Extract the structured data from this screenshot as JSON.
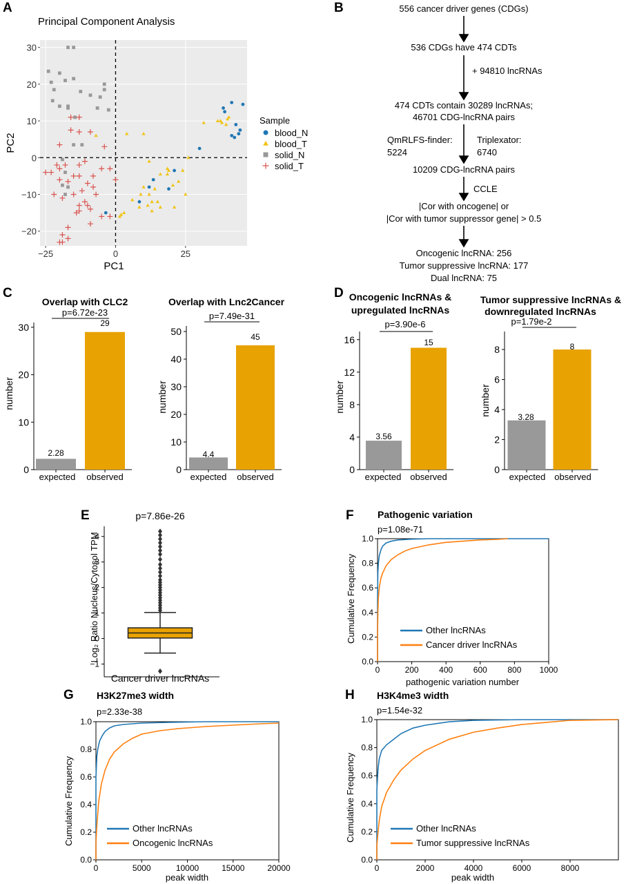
{
  "panels": {
    "A": "A",
    "B": "B",
    "C": "C",
    "D": "D",
    "E": "E",
    "F": "F",
    "G": "G",
    "H": "H"
  },
  "colors": {
    "blue": "#1f77b4",
    "gold": "#e8a202",
    "gray": "#999999",
    "red": "#d9534f",
    "yellow": "#f0c419",
    "panel_bg": "#ebebeb",
    "orange": "#ff7f0e"
  },
  "chart_data": [
    {
      "id": "A",
      "type": "scatter",
      "title": "Principal Component Analysis",
      "xlabel": "PC1",
      "ylabel": "PC2",
      "xlim": [
        -27,
        47
      ],
      "ylim": [
        -24,
        32
      ],
      "xticks": [
        -25,
        0,
        25
      ],
      "yticks": [
        -20,
        -10,
        0,
        10,
        20,
        30
      ],
      "xtick_labels": [
        "−25",
        "0",
        "25"
      ],
      "ytick_labels": [
        "−20",
        "−10",
        "0",
        "10",
        "20",
        "30"
      ],
      "legend_title": "Sample",
      "series": [
        {
          "name": "blood_N",
          "marker": "circle",
          "color": "#1f77b4",
          "points": [
            [
              38.5,
              13.5
            ],
            [
              41.5,
              15
            ],
            [
              45.5,
              14.5
            ],
            [
              39,
              12.5
            ],
            [
              43,
              9
            ],
            [
              44.5,
              7.5
            ],
            [
              44,
              6.5
            ],
            [
              42.5,
              5.5
            ],
            [
              41.5,
              6
            ],
            [
              30,
              2.5
            ],
            [
              21,
              -3.5
            ],
            [
              13.5,
              -6
            ],
            [
              12,
              -8
            ],
            [
              19,
              -8.5
            ],
            [
              8.5,
              -12
            ],
            [
              -3.5,
              -15
            ]
          ]
        },
        {
          "name": "blood_T",
          "marker": "triangle",
          "color": "#f0c419",
          "points": [
            [
              31.5,
              9.5
            ],
            [
              36.5,
              10
            ],
            [
              37.5,
              10
            ],
            [
              40.5,
              11
            ],
            [
              40,
              10.5
            ],
            [
              39.5,
              9
            ],
            [
              38,
              9.5
            ],
            [
              10,
              6.5
            ],
            [
              4,
              6.5
            ],
            [
              -7,
              6
            ],
            [
              12,
              -1
            ],
            [
              16,
              -4.5
            ],
            [
              18.5,
              -4.5
            ],
            [
              19,
              -3.5
            ],
            [
              18.5,
              -3
            ],
            [
              24,
              -3.5
            ],
            [
              26,
              0
            ],
            [
              20.5,
              -7.5
            ],
            [
              22.5,
              -6.5
            ],
            [
              14,
              -8.5
            ],
            [
              10,
              -8
            ],
            [
              12,
              -10
            ],
            [
              9,
              -10
            ],
            [
              6,
              -11.5
            ],
            [
              13,
              -12
            ],
            [
              16,
              -13.5
            ],
            [
              13,
              -14.5
            ],
            [
              8.5,
              -13.5
            ],
            [
              3,
              -15
            ],
            [
              1.5,
              -16
            ],
            [
              2,
              -15.5
            ],
            [
              21,
              -13.5
            ],
            [
              25,
              -10
            ],
            [
              15,
              -12
            ],
            [
              11.5,
              -13
            ]
          ]
        },
        {
          "name": "solid_N",
          "marker": "square",
          "color": "#999999",
          "points": [
            [
              -17,
              30
            ],
            [
              -15,
              30
            ],
            [
              -24,
              23.5
            ],
            [
              -20,
              23
            ],
            [
              -15,
              21.5
            ],
            [
              -18,
              21
            ],
            [
              -23,
              20.5
            ],
            [
              -22,
              18.5
            ],
            [
              -12.5,
              18
            ],
            [
              -4,
              20
            ],
            [
              -4,
              18.5
            ],
            [
              -9,
              17
            ],
            [
              -5.5,
              16.5
            ],
            [
              -22.5,
              15.5
            ],
            [
              -20,
              14
            ],
            [
              -17,
              14
            ],
            [
              -17,
              13.5
            ],
            [
              -6.5,
              13.5
            ],
            [
              -2.5,
              13
            ],
            [
              -14.5,
              11
            ],
            [
              -15,
              3.5
            ],
            [
              -12,
              3.5
            ],
            [
              -19,
              -0.5
            ],
            [
              -18,
              -4
            ],
            [
              -19,
              -7.5
            ],
            [
              -17,
              -8
            ],
            [
              -18,
              -10
            ]
          ]
        },
        {
          "name": "solid_T",
          "marker": "plus",
          "color": "#d9534f",
          "points": [
            [
              -16,
              11
            ],
            [
              -13,
              11
            ],
            [
              -16,
              7.5
            ],
            [
              -13,
              7
            ],
            [
              -9,
              7
            ],
            [
              -20,
              3.5
            ],
            [
              -4,
              3
            ],
            [
              -2,
              -3
            ],
            [
              -21,
              -2
            ],
            [
              -18,
              -2
            ],
            [
              -13,
              -2
            ],
            [
              -11,
              -1
            ],
            [
              -25,
              -4
            ],
            [
              -23,
              -4
            ],
            [
              -20,
              -3
            ],
            [
              -15,
              -5
            ],
            [
              -13,
              -5
            ],
            [
              -8,
              -5
            ],
            [
              -5,
              -3
            ],
            [
              -20,
              -6
            ],
            [
              -17,
              -6.5
            ],
            [
              -10,
              -7
            ],
            [
              -8,
              -8
            ],
            [
              -12,
              -9
            ],
            [
              -15,
              -10
            ],
            [
              -22,
              -10
            ],
            [
              -7,
              -10
            ],
            [
              -19,
              -11
            ],
            [
              -11,
              -12
            ],
            [
              -13,
              -13
            ],
            [
              -9,
              -14
            ],
            [
              -13,
              -14.5
            ],
            [
              -14,
              -15
            ],
            [
              -5,
              -16
            ],
            [
              -9,
              -18
            ],
            [
              -17,
              -19
            ],
            [
              -19,
              -21
            ],
            [
              -17,
              -22
            ],
            [
              -19,
              -23
            ],
            [
              -20,
              -23
            ],
            [
              -10,
              -13
            ],
            [
              -2,
              -16
            ],
            [
              0,
              -6
            ]
          ]
        }
      ]
    },
    {
      "id": "C1",
      "type": "bar",
      "title": "Overlap with CLC2",
      "categories": [
        "expected",
        "observed"
      ],
      "values": [
        2.28,
        29
      ],
      "value_labels": [
        "2.28",
        "29"
      ],
      "colors": [
        "#999999",
        "#e8a202"
      ],
      "ylabel": "number",
      "ylim": [
        0,
        31
      ],
      "yticks": [
        0,
        10,
        20,
        30
      ],
      "pvalue": "p=6.72e-23"
    },
    {
      "id": "C2",
      "type": "bar",
      "title": "Overlap with Lnc2Cancer",
      "categories": [
        "expected",
        "observed"
      ],
      "values": [
        4.4,
        45
      ],
      "value_labels": [
        "4.4",
        "45"
      ],
      "colors": [
        "#999999",
        "#e8a202"
      ],
      "ylabel": "number",
      "ylim": [
        0,
        52
      ],
      "yticks": [
        0,
        10,
        20,
        30,
        40,
        50
      ],
      "pvalue": "p=7.49e-31"
    },
    {
      "id": "D1",
      "type": "bar",
      "title": [
        "Oncogenic lncRNAs &",
        "upregulated lncRNAs"
      ],
      "categories": [
        "expected",
        "observed"
      ],
      "values": [
        3.56,
        15
      ],
      "value_labels": [
        "3.56",
        "15"
      ],
      "colors": [
        "#999999",
        "#e8a202"
      ],
      "ylabel": "number",
      "ylim": [
        0,
        17
      ],
      "yticks": [
        0,
        4,
        8,
        12,
        16
      ],
      "pvalue": "p=3.90e-6"
    },
    {
      "id": "D2",
      "type": "bar",
      "title": [
        "Tumor suppressive lncRNAs &",
        "downregulated lncRNAs"
      ],
      "categories": [
        "expected",
        "observed"
      ],
      "values": [
        3.28,
        8
      ],
      "value_labels": [
        "3.28",
        "8"
      ],
      "colors": [
        "#999999",
        "#e8a202"
      ],
      "ylabel": "number",
      "ylim": [
        0,
        9.2
      ],
      "yticks": [
        0,
        2,
        4,
        6,
        8
      ],
      "pvalue": "p=1.79e-2"
    },
    {
      "id": "E",
      "type": "box",
      "title": "p=7.86e-26",
      "category": "Cancer driver lncRNAs",
      "ylabel": "Log₂ Ratio Nucleus/Cytosol TPM",
      "ylim": [
        -1.5,
        4.4
      ],
      "yticks": [
        -1,
        0,
        1,
        2,
        3,
        4
      ],
      "ytick_labels": [
        "−1",
        "0",
        "1",
        "2",
        "3",
        "4"
      ],
      "box": {
        "q1": 0.02,
        "median": 0.22,
        "q3": 0.42,
        "whisker_low": -0.57,
        "whisker_high": 1.02
      },
      "fliers": [
        -1.28,
        1.1,
        1.2,
        1.3,
        1.4,
        1.5,
        1.6,
        1.7,
        1.8,
        1.9,
        2.0,
        2.1,
        2.2,
        2.3,
        2.45,
        2.6,
        2.75,
        2.9,
        3.1,
        3.3,
        3.45,
        3.6,
        3.75,
        3.9,
        4.05,
        4.2
      ],
      "color": "#e8a202"
    },
    {
      "id": "F",
      "type": "line",
      "title": "Pathogenic variation",
      "pvalue": "p=1.08e-71",
      "xlabel": "pathogenic variation number",
      "ylabel": "Cumulative Frequency",
      "xlim": [
        0,
        1000
      ],
      "ylim": [
        0,
        1.0
      ],
      "xticks": [
        0,
        200,
        400,
        600,
        800,
        1000
      ],
      "yticks": [
        0.0,
        0.2,
        0.4,
        0.6,
        0.8,
        1.0
      ],
      "series": [
        {
          "name": "Other lncRNAs",
          "color": "#1f77b4",
          "x": [
            0,
            2,
            5,
            10,
            20,
            30,
            50,
            80,
            120,
            200,
            300,
            1000
          ],
          "y": [
            0.5,
            0.72,
            0.8,
            0.86,
            0.91,
            0.94,
            0.965,
            0.98,
            0.99,
            0.996,
            1.0,
            1.0
          ]
        },
        {
          "name": "Cancer driver lncRNAs",
          "color": "#ff7f0e",
          "x": [
            0,
            2,
            5,
            10,
            20,
            30,
            50,
            80,
            120,
            160,
            200,
            300,
            400,
            500,
            600,
            700,
            760
          ],
          "y": [
            0.22,
            0.4,
            0.52,
            0.6,
            0.68,
            0.72,
            0.78,
            0.83,
            0.87,
            0.9,
            0.92,
            0.95,
            0.97,
            0.98,
            0.99,
            0.995,
            1.0
          ]
        }
      ]
    },
    {
      "id": "G",
      "type": "line",
      "title": "H3K27me3 width",
      "pvalue": "p=2.33e-38",
      "xlabel": "peak width",
      "ylabel": "Cumulative Frequency",
      "xlim": [
        0,
        20000
      ],
      "ylim": [
        0,
        1.0
      ],
      "xticks": [
        0,
        5000,
        10000,
        15000,
        20000
      ],
      "yticks": [
        0.0,
        0.2,
        0.4,
        0.6,
        0.8,
        1.0
      ],
      "series": [
        {
          "name": "Other lncRNAs",
          "color": "#1f77b4",
          "x": [
            0,
            100,
            200,
            400,
            700,
            1000,
            1500,
            2000,
            3000,
            5000,
            8000,
            12000,
            20000
          ],
          "y": [
            0.6,
            0.75,
            0.8,
            0.86,
            0.9,
            0.93,
            0.955,
            0.97,
            0.98,
            0.99,
            0.995,
            1.0,
            1.0
          ]
        },
        {
          "name": "Oncogenic lncRNAs",
          "color": "#ff7f0e",
          "x": [
            0,
            100,
            300,
            600,
            1000,
            1500,
            2000,
            3000,
            4000,
            5000,
            7000,
            9000,
            12000,
            15000,
            18000,
            20000
          ],
          "y": [
            0.12,
            0.25,
            0.42,
            0.55,
            0.65,
            0.73,
            0.78,
            0.84,
            0.88,
            0.91,
            0.935,
            0.95,
            0.965,
            0.975,
            0.985,
            0.99
          ]
        }
      ]
    },
    {
      "id": "H",
      "type": "line",
      "title": "H3K4me3 width",
      "pvalue": "p=1.54e-32",
      "xlabel": "peak width",
      "ylabel": "Cumulative Frequency",
      "xlim": [
        0,
        10000
      ],
      "ylim": [
        0,
        1.0
      ],
      "xticks": [
        0,
        2000,
        4000,
        6000,
        8000
      ],
      "yticks": [
        0.0,
        0.2,
        0.4,
        0.6,
        0.8,
        1.0
      ],
      "series": [
        {
          "name": "Other lncRNAs",
          "color": "#1f77b4",
          "x": [
            0,
            50,
            100,
            200,
            400,
            700,
            1000,
            1500,
            2000,
            3000,
            4000,
            6000,
            10000
          ],
          "y": [
            0.5,
            0.65,
            0.72,
            0.78,
            0.82,
            0.86,
            0.9,
            0.94,
            0.96,
            0.985,
            0.995,
            1.0,
            1.0
          ]
        },
        {
          "name": "Tumor suppressive lncRNAs",
          "color": "#ff7f0e",
          "x": [
            0,
            50,
            100,
            200,
            400,
            700,
            1000,
            1500,
            2000,
            3000,
            4000,
            5000,
            6000,
            7000,
            8000,
            10000
          ],
          "y": [
            0.1,
            0.2,
            0.28,
            0.38,
            0.48,
            0.57,
            0.64,
            0.72,
            0.78,
            0.86,
            0.91,
            0.94,
            0.965,
            0.98,
            0.995,
            1.0
          ]
        }
      ]
    }
  ],
  "flowchart": {
    "steps": [
      [
        "556 cancer driver genes (CDGs)"
      ],
      [
        "536 CDGs have 474 CDTs"
      ],
      [
        "474 CDTs contain 30289 lncRNAs;",
        "46701 CDG-lncRNA pairs"
      ],
      [
        "10209 CDG-lncRNA pairs"
      ],
      [
        "|Cor with oncogene| or",
        "|Cor with tumor suppressor gene| > 0.5"
      ],
      [
        "Oncogenic lncRNA: 256",
        "Tumor suppressive lncRNA: 177",
        "Dual lncRNA: 75"
      ]
    ],
    "side_notes": {
      "add_lncrna": "+ 94810 lncRNAs",
      "qmrlfs": [
        "QmRLFS-finder:",
        "5224"
      ],
      "triplexator": [
        "Triplexator:",
        "6740"
      ],
      "ccle": "CCLE"
    }
  }
}
